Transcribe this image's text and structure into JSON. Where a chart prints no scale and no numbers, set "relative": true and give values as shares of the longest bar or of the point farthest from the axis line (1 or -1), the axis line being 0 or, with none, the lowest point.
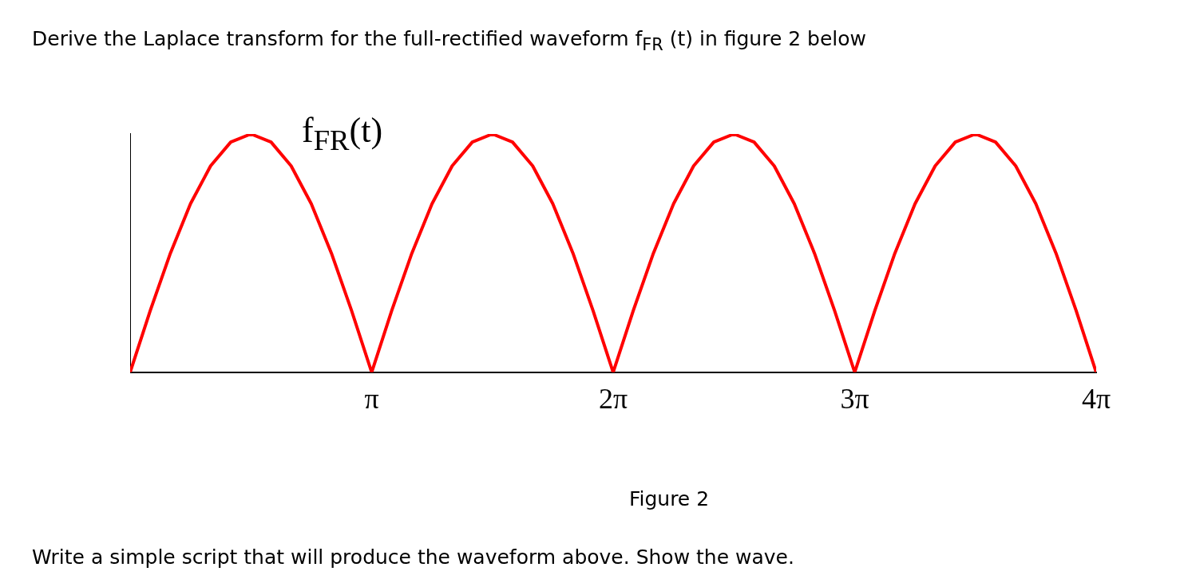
{
  "chart_data": {
    "type": "line",
    "title": "Derive the Laplace transform for the full-rectified waveform f$_{FR}$ (t) in figure 2 below",
    "ylabel": "f$_{FR}$(t)",
    "annotations": [
      "Figure 2",
      "Write a simple script that will produce the waveform above. Show the wave."
    ],
    "relative": true,
    "xlim": [
      0,
      12.566
    ],
    "xticks": [
      {
        "value": 3.142,
        "label": "π"
      },
      {
        "value": 6.283,
        "label": "2π"
      },
      {
        "value": 9.425,
        "label": "3π"
      },
      {
        "value": 12.566,
        "label": "4π"
      }
    ],
    "grid": false,
    "legend": false,
    "marker": "none",
    "line_style": "solid",
    "x": [
      0,
      0.262,
      0.524,
      0.785,
      1.047,
      1.309,
      1.571,
      1.833,
      2.094,
      2.356,
      2.618,
      2.88,
      3.142,
      3.403,
      3.665,
      3.927,
      4.189,
      4.451,
      4.712,
      4.974,
      5.236,
      5.498,
      5.76,
      6.021,
      6.283,
      6.545,
      6.807,
      7.069,
      7.33,
      7.592,
      7.854,
      8.116,
      8.378,
      8.639,
      8.901,
      9.163,
      9.425,
      9.687,
      9.948,
      10.21,
      10.472,
      10.734,
      10.996,
      11.257,
      11.519,
      11.781,
      12.043,
      12.305,
      12.566
    ],
    "series": [
      {
        "color": "#ff0000",
        "values": [
          0,
          0.259,
          0.5,
          0.707,
          0.866,
          0.966,
          1,
          0.966,
          0.866,
          0.707,
          0.5,
          0.259,
          0,
          0.259,
          0.5,
          0.707,
          0.866,
          0.966,
          1,
          0.966,
          0.866,
          0.707,
          0.5,
          0.259,
          0,
          0.259,
          0.5,
          0.707,
          0.866,
          0.966,
          1,
          0.966,
          0.866,
          0.707,
          0.5,
          0.259,
          0,
          0.259,
          0.5,
          0.707,
          0.866,
          0.966,
          1,
          0.966,
          0.866,
          0.707,
          0.5,
          0.259,
          0
        ]
      }
    ]
  }
}
